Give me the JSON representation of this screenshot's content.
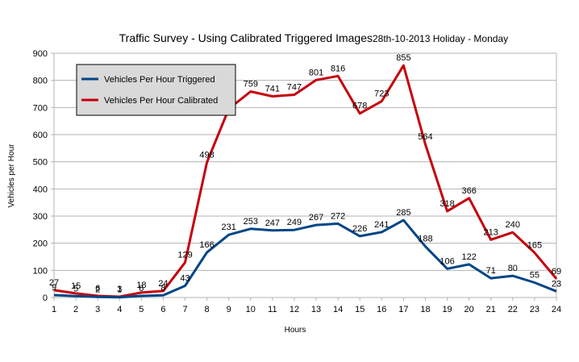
{
  "chart_data": {
    "type": "line",
    "title": "Traffic Survey - Using Calibrated Triggered Images",
    "subtitle": "28th-10-2013 Holiday - Monday",
    "xlabel": "Hours",
    "ylabel": "Vehicles per Hour",
    "categories": [
      "1",
      "2",
      "3",
      "4",
      "5",
      "6",
      "7",
      "8",
      "9",
      "10",
      "11",
      "12",
      "13",
      "14",
      "15",
      "16",
      "17",
      "18",
      "19",
      "20",
      "21",
      "22",
      "23",
      "24"
    ],
    "ylim": [
      0,
      900
    ],
    "yticks": [
      0,
      100,
      200,
      300,
      400,
      500,
      600,
      700,
      800,
      900
    ],
    "grid": true,
    "legend_position": "top-left",
    "series": [
      {
        "name": "Vehicles Per Hour Triggered",
        "color": "#004586",
        "values": [
          9,
          5,
          2,
          1,
          6,
          8,
          43,
          166,
          231,
          253,
          247,
          249,
          267,
          272,
          226,
          241,
          285,
          188,
          106,
          122,
          71,
          80,
          55,
          23
        ]
      },
      {
        "name": "Vehicles Per Hour Calibrated",
        "color": "#c5000b",
        "values": [
          27,
          15,
          6,
          3,
          18,
          24,
          129,
          498,
          695,
          759,
          741,
          747,
          801,
          816,
          678,
          723,
          855,
          564,
          318,
          366,
          213,
          240,
          165,
          69
        ]
      }
    ],
    "visible_labels": [
      [
        "9",
        "5",
        "2",
        "1",
        "6",
        "8",
        "43",
        "166",
        "231",
        "253",
        "247",
        "249",
        "267",
        "272",
        "226",
        "241",
        "285",
        "188",
        "106",
        "122",
        "71",
        "80",
        "55",
        "23"
      ],
      [
        "27",
        "15",
        "6",
        "3",
        "18",
        "24",
        "129",
        "498",
        "",
        "759",
        "741",
        "747",
        "801",
        "816",
        "678",
        "723",
        "855",
        "564",
        "318",
        "366",
        "213",
        "240",
        "165",
        "69"
      ]
    ]
  }
}
